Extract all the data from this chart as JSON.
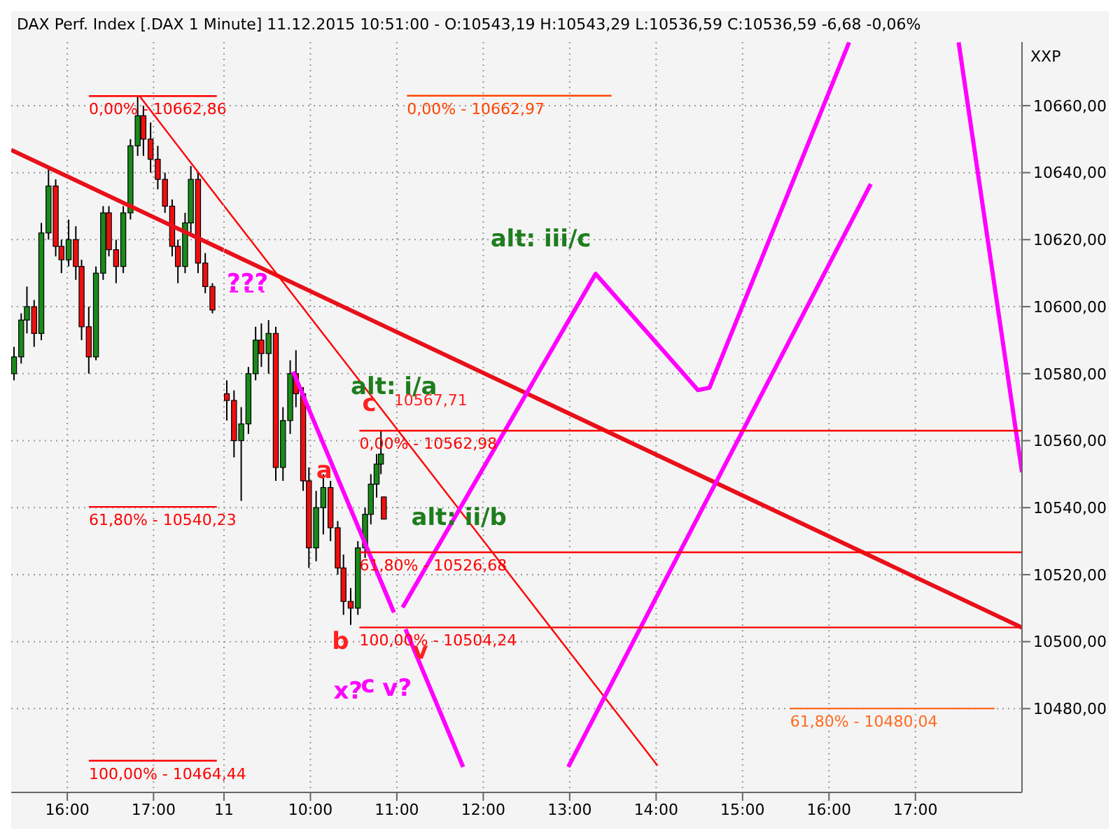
{
  "chart_data": [
    {
      "type": "candlestick",
      "title": "DAX Perf. Index [.DAX  1 Minute] 11.12.2015 10:51:00 - O:10543,19 H:10543,29 L:10536,59 C:10536,59 -6,68 -0,06%",
      "x": [
        "2015-12-10T15:23",
        "2015-12-10T15:28",
        "2015-12-10T15:32",
        "2015-12-10T15:37",
        "2015-12-10T15:42",
        "2015-12-10T15:47",
        "2015-12-10T15:52",
        "2015-12-10T15:56",
        "2015-12-10T16:01",
        "2015-12-10T16:06",
        "2015-12-10T16:10",
        "2015-12-10T16:15",
        "2015-12-10T16:20",
        "2015-12-10T16:25",
        "2015-12-10T16:29",
        "2015-12-10T16:34",
        "2015-12-10T16:39",
        "2015-12-10T16:44",
        "2015-12-10T16:49",
        "2015-12-10T16:53",
        "2015-12-10T16:58",
        "2015-12-10T17:03",
        "2015-12-10T17:08",
        "2015-12-10T17:13",
        "2015-12-10T17:17",
        "2015-12-10T17:22",
        "2015-12-10T17:26",
        "2015-12-10T17:31",
        "2015-12-10T17:36",
        "2015-12-10T17:41"
      ],
      "ohlc": [
        [
          10580,
          10588,
          10578,
          10585
        ],
        [
          10585,
          10598,
          10583,
          10596
        ],
        [
          10596,
          10606,
          10592,
          10600
        ],
        [
          10600,
          10602,
          10588,
          10592
        ],
        [
          10592,
          10625,
          10590,
          10622
        ],
        [
          10622,
          10642,
          10620,
          10636
        ],
        [
          10636,
          10638,
          10615,
          10618
        ],
        [
          10618,
          10620,
          10610,
          10614
        ],
        [
          10614,
          10626,
          10612,
          10620
        ],
        [
          10620,
          10624,
          10608,
          10612
        ],
        [
          10612,
          10614,
          10590,
          10594
        ],
        [
          10594,
          10600,
          10580,
          10585
        ],
        [
          10585,
          10612,
          10584,
          10610
        ],
        [
          10610,
          10630,
          10608,
          10628
        ],
        [
          10628,
          10630,
          10615,
          10617
        ],
        [
          10617,
          10620,
          10607,
          10612
        ],
        [
          10612,
          10630,
          10610,
          10628
        ],
        [
          10628,
          10650,
          10626,
          10648
        ],
        [
          10648,
          10663,
          10645,
          10657
        ],
        [
          10657,
          10660,
          10645,
          10650
        ],
        [
          10650,
          10655,
          10640,
          10644
        ],
        [
          10644,
          10648,
          10635,
          10638
        ],
        [
          10638,
          10640,
          10628,
          10630
        ],
        [
          10630,
          10632,
          10615,
          10618
        ],
        [
          10618,
          10620,
          10607,
          10612
        ],
        [
          10612,
          10628,
          10610,
          10625
        ],
        [
          10625,
          10642,
          10622,
          10638
        ],
        [
          10638,
          10640,
          10610,
          10613
        ],
        [
          10613,
          10616,
          10604,
          10606
        ],
        [
          10606,
          10607,
          10598,
          10599
        ]
      ],
      "series": [
        {
          "type": "line",
          "color": "#e8101a",
          "x": [
            "2015-12-10T15:21",
            "2015-12-10T17:49"
          ],
          "values": [
            10646.8,
            10616.8
          ]
        },
        {
          "type": "line",
          "color": "#ff0000",
          "x": [
            "2015-12-10T16:50",
            "2015-12-10T17:49"
          ],
          "values": [
            10663,
            10630.1
          ]
        },
        {
          "type": "line",
          "color": "#ff0000",
          "x": [
            "2015-12-10T16:15",
            "2015-12-10T17:44"
          ],
          "values": [
            10662.86,
            10662.86
          ]
        },
        {
          "type": "line",
          "color": "#ff0000",
          "x": [
            "2015-12-10T16:15",
            "2015-12-10T17:44"
          ],
          "values": [
            10540.23,
            10540.23
          ]
        },
        {
          "type": "line",
          "color": "#ff0000",
          "x": [
            "2015-12-10T16:15",
            "2015-12-10T17:44"
          ],
          "values": [
            10464.44,
            10464.44
          ]
        }
      ],
      "annotations": [
        {
          "text": "0,00% - 10662,86",
          "x": "2015-12-10T16:15",
          "y": 10662.86
        },
        {
          "text": "61,80% - 10540,23",
          "x": "2015-12-10T16:15",
          "y": 10540.23
        },
        {
          "text": "100,00% - 10464,44",
          "x": "2015-12-10T16:15",
          "y": 10464.44
        }
      ],
      "xlim": [
        "2015-12-10T15:21",
        "2015-12-10T17:49"
      ],
      "xticks": [
        {
          "value": "2015-12-10T16:00",
          "label": "16:00"
        },
        {
          "value": "2015-12-10T17:00",
          "label": "17:00"
        }
      ],
      "ylim": [
        10455,
        10679
      ],
      "yticks": [
        10480,
        10500,
        10520,
        10540,
        10560,
        10580,
        10600,
        10620,
        10640,
        10660
      ],
      "tick_labels": "x",
      "grid": true
    },
    {
      "type": "candlestick",
      "ylabel": "XXP",
      "x": [
        "2015-12-11T09:02",
        "2015-12-11T09:07",
        "2015-12-11T09:12",
        "2015-12-11T09:17",
        "2015-12-11T09:22",
        "2015-12-11T09:26",
        "2015-12-11T09:31",
        "2015-12-11T09:36",
        "2015-12-11T09:41",
        "2015-12-11T09:46",
        "2015-12-11T09:50",
        "2015-12-11T09:55",
        "2015-12-11T09:59",
        "2015-12-11T10:04",
        "2015-12-11T10:09",
        "2015-12-11T10:14",
        "2015-12-11T10:19",
        "2015-12-11T10:23",
        "2015-12-11T10:28",
        "2015-12-11T10:33",
        "2015-12-11T10:38",
        "2015-12-11T10:42",
        "2015-12-11T10:46",
        "2015-12-11T10:49",
        "2015-12-11T10:51"
      ],
      "ohlc": [
        [
          10574,
          10578,
          10566,
          10572
        ],
        [
          10572,
          10575,
          10555,
          10560
        ],
        [
          10560,
          10570,
          10542,
          10565
        ],
        [
          10565,
          10582,
          10562,
          10580
        ],
        [
          10580,
          10594,
          10578,
          10590
        ],
        [
          10590,
          10595,
          10582,
          10586
        ],
        [
          10586,
          10596,
          10580,
          10592
        ],
        [
          10592,
          10594,
          10548,
          10552
        ],
        [
          10552,
          10570,
          10548,
          10566
        ],
        [
          10566,
          10584,
          10562,
          10580
        ],
        [
          10580,
          10587,
          10570,
          10574
        ],
        [
          10574,
          10576,
          10545,
          10548
        ],
        [
          10548,
          10552,
          10522,
          10528
        ],
        [
          10528,
          10545,
          10524,
          10540
        ],
        [
          10540,
          10550,
          10532,
          10546
        ],
        [
          10546,
          10548,
          10530,
          10534
        ],
        [
          10534,
          10536,
          10520,
          10522
        ],
        [
          10522,
          10526,
          10508,
          10512
        ],
        [
          10512,
          10516,
          10505,
          10510
        ],
        [
          10510,
          10530,
          10508,
          10528
        ],
        [
          10528,
          10540,
          10525,
          10538
        ],
        [
          10538,
          10550,
          10535,
          10547
        ],
        [
          10547,
          10556,
          10543,
          10553
        ],
        [
          10553,
          10563,
          10550,
          10556
        ],
        [
          10543.19,
          10543.29,
          10536.59,
          10536.59
        ]
      ],
      "series": [
        {
          "type": "line",
          "color": "#e8101a",
          "x": [
            "2015-12-11T09:00",
            "2015-12-11T18:14"
          ],
          "values": [
            10616.8,
            10504.2
          ]
        },
        {
          "type": "line",
          "color": "#ff0000",
          "x": [
            "2015-12-11T09:00",
            "2015-12-11T14:01"
          ],
          "values": [
            10630.1,
            10463
          ]
        },
        {
          "type": "line",
          "color": "#ff00ff",
          "x": [
            "2015-12-11T09:48",
            "2015-12-11T10:58"
          ],
          "values": [
            10580.6,
            10508.7
          ]
        },
        {
          "type": "line",
          "color": "#ff00ff",
          "x": [
            "2015-12-11T11:06",
            "2015-12-11T11:46"
          ],
          "values": [
            10503.7,
            10462.6
          ]
        },
        {
          "type": "line",
          "color": "#ff00ff",
          "x": [
            "2015-12-11T11:04",
            "2015-12-11T13:18",
            "2015-12-11T14:29",
            "2015-12-11T14:37",
            "2015-12-11T16:14"
          ],
          "values": [
            10510.2,
            10609.8,
            10575.1,
            10575.8,
            10678.9
          ]
        },
        {
          "type": "line",
          "color": "#ff00ff",
          "x": [
            "2015-12-11T12:59",
            "2015-12-11T16:29"
          ],
          "values": [
            10462.6,
            10636.6
          ]
        },
        {
          "type": "line",
          "color": "#ff00ff",
          "x": [
            "2015-12-11T17:30",
            "2015-12-11T18:14"
          ],
          "values": [
            10678.9,
            10550.6
          ]
        },
        {
          "type": "line",
          "color": "#ff00ff",
          "line_style": "dashed",
          "x": [
            "2015-12-11T09:04",
            "2015-12-11T09:28"
          ],
          "values": [
            10604.5,
            10604.5
          ]
        },
        {
          "type": "line",
          "color": "#ff4500",
          "x": [
            "2015-12-11T11:07",
            "2015-12-11T13:29"
          ],
          "values": [
            10662.97,
            10662.97
          ]
        },
        {
          "type": "line",
          "color": "#ff0000",
          "x": [
            "2015-12-11T10:34",
            "2015-12-11T18:14"
          ],
          "values": [
            10562.98,
            10562.98
          ]
        },
        {
          "type": "line",
          "color": "#ff0000",
          "x": [
            "2015-12-11T10:34",
            "2015-12-11T18:14"
          ],
          "values": [
            10526.68,
            10526.68
          ]
        },
        {
          "type": "line",
          "color": "#ff0000",
          "x": [
            "2015-12-11T10:34",
            "2015-12-11T18:14"
          ],
          "values": [
            10504.24,
            10504.24
          ]
        },
        {
          "type": "line",
          "color": "#ff6a20",
          "x": [
            "2015-12-11T15:33",
            "2015-12-11T17:55"
          ],
          "values": [
            10480.04,
            10480.04
          ]
        }
      ],
      "annotations": [
        {
          "text": "0,00% - 10662,97",
          "x": "2015-12-11T11:07",
          "y": 10662.97
        },
        {
          "text": "0,00% - 10562,98",
          "x": "2015-12-11T10:34",
          "y": 10562.98
        },
        {
          "text": "61,80% - 10526,68",
          "x": "2015-12-11T10:34",
          "y": 10526.68
        },
        {
          "text": "100,00% - 10504,24",
          "x": "2015-12-11T10:34",
          "y": 10504.24
        },
        {
          "text": "61,80% - 10480,04",
          "x": "2015-12-11T15:33",
          "y": 10480.04
        },
        "10567,71",
        "alt: iii/c",
        "alt: i/a",
        "alt: ii/b",
        "???",
        "a",
        "b",
        "c",
        "v",
        "x?",
        "c",
        "v?"
      ],
      "xlim": [
        "2015-12-11T09:00",
        "2015-12-11T18:14"
      ],
      "xticks": [
        {
          "value": "2015-12-11T09:00",
          "label": "11"
        },
        {
          "value": "2015-12-11T10:00",
          "label": "10:00"
        },
        {
          "value": "2015-12-11T11:00",
          "label": "11:00"
        },
        {
          "value": "2015-12-11T12:00",
          "label": "12:00"
        },
        {
          "value": "2015-12-11T13:00",
          "label": "13:00"
        },
        {
          "value": "2015-12-11T14:00",
          "label": "14:00"
        },
        {
          "value": "2015-12-11T15:00",
          "label": "15:00"
        },
        {
          "value": "2015-12-11T16:00",
          "label": "16:00"
        },
        {
          "value": "2015-12-11T17:00",
          "label": "17:00"
        }
      ],
      "ylim": [
        10455,
        10679
      ],
      "yticks": [
        {
          "value": 10480,
          "label": "10480,00"
        },
        {
          "value": 10500,
          "label": "10500,00"
        },
        {
          "value": 10520,
          "label": "10520,00"
        },
        {
          "value": 10540,
          "label": "10540,00"
        },
        {
          "value": 10560,
          "label": "10560,00"
        },
        {
          "value": 10580,
          "label": "10580,00"
        },
        {
          "value": 10600,
          "label": "10600,00"
        },
        {
          "value": 10620,
          "label": "10620,00"
        },
        {
          "value": 10640,
          "label": "10640,00"
        },
        {
          "value": 10660,
          "label": "10660,00"
        }
      ],
      "grid": true
    }
  ]
}
